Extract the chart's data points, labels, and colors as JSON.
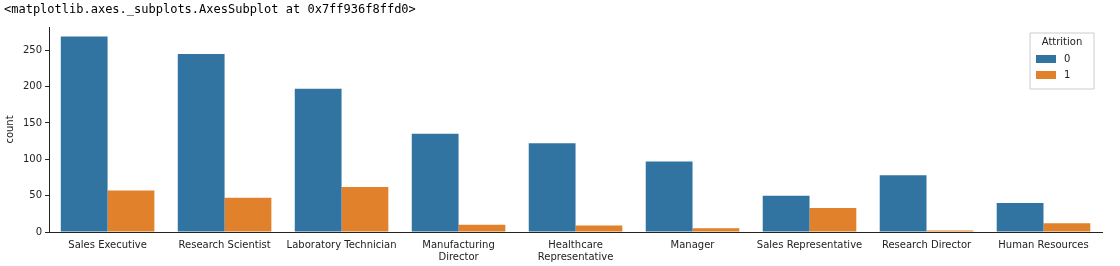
{
  "chart_data": {
    "type": "bar",
    "title": "<matplotlib.axes._subplots.AxesSubplot at 0x7ff936f8ffd0>",
    "ylabel": "count",
    "legend_title": "Attrition",
    "legend": "top right",
    "grid": false,
    "categories": [
      "Sales Executive",
      "Research Scientist",
      "Laboratory Technician",
      "Manufacturing Director",
      "Healthcare Representative",
      "Manager",
      "Sales Representative",
      "Research Director",
      "Human Resources"
    ],
    "series": [
      {
        "name": "0",
        "color": "#3274a1",
        "values": [
          269,
          245,
          197,
          135,
          122,
          97,
          50,
          78,
          40
        ]
      },
      {
        "name": "1",
        "color": "#e1812c",
        "values": [
          57,
          47,
          62,
          10,
          9,
          5,
          33,
          2,
          12
        ]
      }
    ],
    "ylim": [
      0,
      282
    ],
    "yticks": [
      0,
      50,
      100,
      150,
      200,
      250
    ]
  }
}
